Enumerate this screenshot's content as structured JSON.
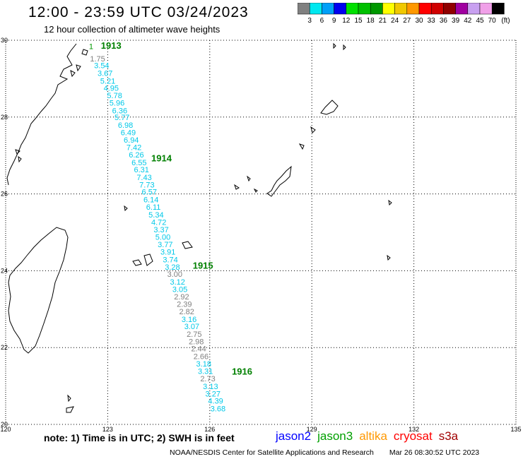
{
  "header": {
    "title": "12:00 - 23:59 UTC 03/24/2023",
    "subtitle": "12 hour collection of altimeter wave heights"
  },
  "legend": {
    "unit": "(ft)",
    "bins": [
      {
        "label": "3",
        "color": "#808080"
      },
      {
        "label": "6",
        "color": "#00e8f0"
      },
      {
        "label": "9",
        "color": "#00a0f8"
      },
      {
        "label": "12",
        "color": "#0000f0"
      },
      {
        "label": "15",
        "color": "#00e000"
      },
      {
        "label": "18",
        "color": "#00c000"
      },
      {
        "label": "21",
        "color": "#009800"
      },
      {
        "label": "24",
        "color": "#ffff00"
      },
      {
        "label": "27",
        "color": "#f0c800"
      },
      {
        "label": "30",
        "color": "#ff9800"
      },
      {
        "label": "33",
        "color": "#ff0000"
      },
      {
        "label": "36",
        "color": "#d00000"
      },
      {
        "label": "39",
        "color": "#900000"
      },
      {
        "label": "42",
        "color": "#a000a0"
      },
      {
        "label": "45",
        "color": "#c8a0f0"
      },
      {
        "label": "70",
        "color": "#f0a0e8"
      },
      {
        "label": "",
        "color": "#000000"
      }
    ]
  },
  "map": {
    "lon_ticks": [
      "120",
      "123",
      "126",
      "129",
      "132",
      "135"
    ],
    "lat_ticks": [
      "30",
      "28",
      "26",
      "24",
      "22",
      "20"
    ],
    "time_labels": [
      {
        "text": "1913",
        "lon": 122.8,
        "lat": 29.78
      },
      {
        "text": "1914",
        "lon": 124.28,
        "lat": 26.85
      },
      {
        "text": "1915",
        "lon": 125.5,
        "lat": 24.05
      },
      {
        "text": "1916",
        "lon": 126.65,
        "lat": 21.3
      }
    ],
    "track": [
      {
        "v": "1",
        "lon": 122.45,
        "lat": 29.77,
        "c": "#009800"
      },
      {
        "v": "1.75",
        "lon": 122.48,
        "lat": 29.45,
        "c": "#808080"
      },
      {
        "v": "3.54",
        "lon": 122.6,
        "lat": 29.27,
        "c": "#00c8e8"
      },
      {
        "v": "3.67",
        "lon": 122.7,
        "lat": 29.07,
        "c": "#00c8e8"
      },
      {
        "v": "5.21",
        "lon": 122.78,
        "lat": 28.87,
        "c": "#00c8e8"
      },
      {
        "v": "4.95",
        "lon": 122.88,
        "lat": 28.69,
        "c": "#00c8e8"
      },
      {
        "v": "5.78",
        "lon": 122.98,
        "lat": 28.49,
        "c": "#00c8e8"
      },
      {
        "v": "5.96",
        "lon": 123.05,
        "lat": 28.3,
        "c": "#00c8e8"
      },
      {
        "v": "6.36",
        "lon": 123.13,
        "lat": 28.1,
        "c": "#00c8e8"
      },
      {
        "v": "5.77",
        "lon": 123.2,
        "lat": 27.92,
        "c": "#00c8e8"
      },
      {
        "v": "6.98",
        "lon": 123.3,
        "lat": 27.72,
        "c": "#00c8e8"
      },
      {
        "v": "6.49",
        "lon": 123.38,
        "lat": 27.53,
        "c": "#00c8e8"
      },
      {
        "v": "6.94",
        "lon": 123.47,
        "lat": 27.33,
        "c": "#00c8e8"
      },
      {
        "v": "7.42",
        "lon": 123.55,
        "lat": 27.14,
        "c": "#00c8e8"
      },
      {
        "v": "6.26",
        "lon": 123.62,
        "lat": 26.95,
        "c": "#00c8e8"
      },
      {
        "v": "6.55",
        "lon": 123.7,
        "lat": 26.75,
        "c": "#00c8e8"
      },
      {
        "v": "6.31",
        "lon": 123.77,
        "lat": 26.56,
        "c": "#00c8e8"
      },
      {
        "v": "7.43",
        "lon": 123.85,
        "lat": 26.36,
        "c": "#00c8e8"
      },
      {
        "v": "7.73",
        "lon": 123.93,
        "lat": 26.17,
        "c": "#00c8e8"
      },
      {
        "v": "6.57",
        "lon": 124.0,
        "lat": 25.98,
        "c": "#00c8e8"
      },
      {
        "v": "6.14",
        "lon": 124.05,
        "lat": 25.78,
        "c": "#00c8e8"
      },
      {
        "v": "6.11",
        "lon": 124.13,
        "lat": 25.59,
        "c": "#00c8e8"
      },
      {
        "v": "5.34",
        "lon": 124.2,
        "lat": 25.39,
        "c": "#00c8e8"
      },
      {
        "v": "4.72",
        "lon": 124.28,
        "lat": 25.19,
        "c": "#00c8e8"
      },
      {
        "v": "3.37",
        "lon": 124.35,
        "lat": 25.0,
        "c": "#00c8e8"
      },
      {
        "v": "5.00",
        "lon": 124.4,
        "lat": 24.81,
        "c": "#00c8e8"
      },
      {
        "v": "3.77",
        "lon": 124.47,
        "lat": 24.61,
        "c": "#00c8e8"
      },
      {
        "v": "3.91",
        "lon": 124.55,
        "lat": 24.42,
        "c": "#00c8e8"
      },
      {
        "v": "3.74",
        "lon": 124.62,
        "lat": 24.22,
        "c": "#00c8e8"
      },
      {
        "v": "3.28",
        "lon": 124.68,
        "lat": 24.03,
        "c": "#00c8e8"
      },
      {
        "v": "3.00",
        "lon": 124.75,
        "lat": 23.84,
        "c": "#808080"
      },
      {
        "v": "3.12",
        "lon": 124.83,
        "lat": 23.64,
        "c": "#00c8e8"
      },
      {
        "v": "3.05",
        "lon": 124.9,
        "lat": 23.45,
        "c": "#00c8e8"
      },
      {
        "v": "2.92",
        "lon": 124.95,
        "lat": 23.25,
        "c": "#808080"
      },
      {
        "v": "2.39",
        "lon": 125.03,
        "lat": 23.06,
        "c": "#808080"
      },
      {
        "v": "2.82",
        "lon": 125.1,
        "lat": 22.87,
        "c": "#808080"
      },
      {
        "v": "3.16",
        "lon": 125.17,
        "lat": 22.67,
        "c": "#00c8e8"
      },
      {
        "v": "3.07",
        "lon": 125.25,
        "lat": 22.48,
        "c": "#00c8e8"
      },
      {
        "v": "2.75",
        "lon": 125.32,
        "lat": 22.28,
        "c": "#808080"
      },
      {
        "v": "2.98",
        "lon": 125.38,
        "lat": 22.09,
        "c": "#808080"
      },
      {
        "v": "2.44",
        "lon": 125.45,
        "lat": 21.9,
        "c": "#808080"
      },
      {
        "v": "2.66",
        "lon": 125.52,
        "lat": 21.7,
        "c": "#808080"
      },
      {
        "v": "3.18",
        "lon": 125.6,
        "lat": 21.51,
        "c": "#00c8e8"
      },
      {
        "v": "3.31",
        "lon": 125.65,
        "lat": 21.31,
        "c": "#00c8e8"
      },
      {
        "v": "2.73",
        "lon": 125.72,
        "lat": 21.12,
        "c": "#808080"
      },
      {
        "v": "3.13",
        "lon": 125.8,
        "lat": 20.92,
        "c": "#00c8e8"
      },
      {
        "v": "3.27",
        "lon": 125.87,
        "lat": 20.73,
        "c": "#00c8e8"
      },
      {
        "v": "4.39",
        "lon": 125.95,
        "lat": 20.54,
        "c": "#00c8e8"
      },
      {
        "v": "3.68",
        "lon": 126.02,
        "lat": 20.34,
        "c": "#00c8e8"
      }
    ]
  },
  "footer": {
    "note": "note: 1) Time is in UTC; 2) SWH is in feet",
    "satellites": [
      {
        "name": "jason2",
        "color": "#0000ff"
      },
      {
        "name": "jason3",
        "color": "#00a000"
      },
      {
        "name": "altika",
        "color": "#ff9800"
      },
      {
        "name": "cryosat",
        "color": "#ff0000"
      },
      {
        "name": "s3a",
        "color": "#a00000"
      }
    ],
    "credit": "NOAA/NESDIS Center for Satellite Applications and Research",
    "timestamp": "Mar 26 08:30:52 UTC 2023"
  }
}
